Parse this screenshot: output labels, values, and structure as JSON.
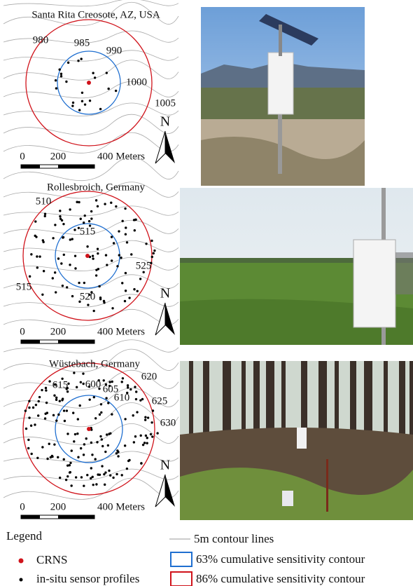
{
  "panels": [
    {
      "title": "Santa Rita Creosote, AZ, USA",
      "contour_labels": [
        "980",
        "985",
        "990",
        "1000",
        "1005"
      ],
      "scale_labels": [
        "0",
        "200",
        "400 Meters"
      ],
      "north": "N"
    },
    {
      "title": "Rollesbroich, Germany",
      "contour_labels": [
        "510",
        "515",
        "525",
        "515",
        "520"
      ],
      "scale_labels": [
        "0",
        "200",
        "400 Meters"
      ],
      "north": "N"
    },
    {
      "title": "Wüstebach, Germany",
      "contour_labels": [
        "615",
        "600",
        "605",
        "610",
        "620",
        "625",
        "630"
      ],
      "scale_labels": [
        "0",
        "200",
        "400 Meters"
      ],
      "north": "N"
    }
  ],
  "legend": {
    "title": "Legend",
    "items": [
      "CRNS",
      "in-situ sensor profiles",
      "5m contour lines",
      "63% cumulative sensitivity contour",
      "86%  cumulative sensitivity contour"
    ]
  }
}
